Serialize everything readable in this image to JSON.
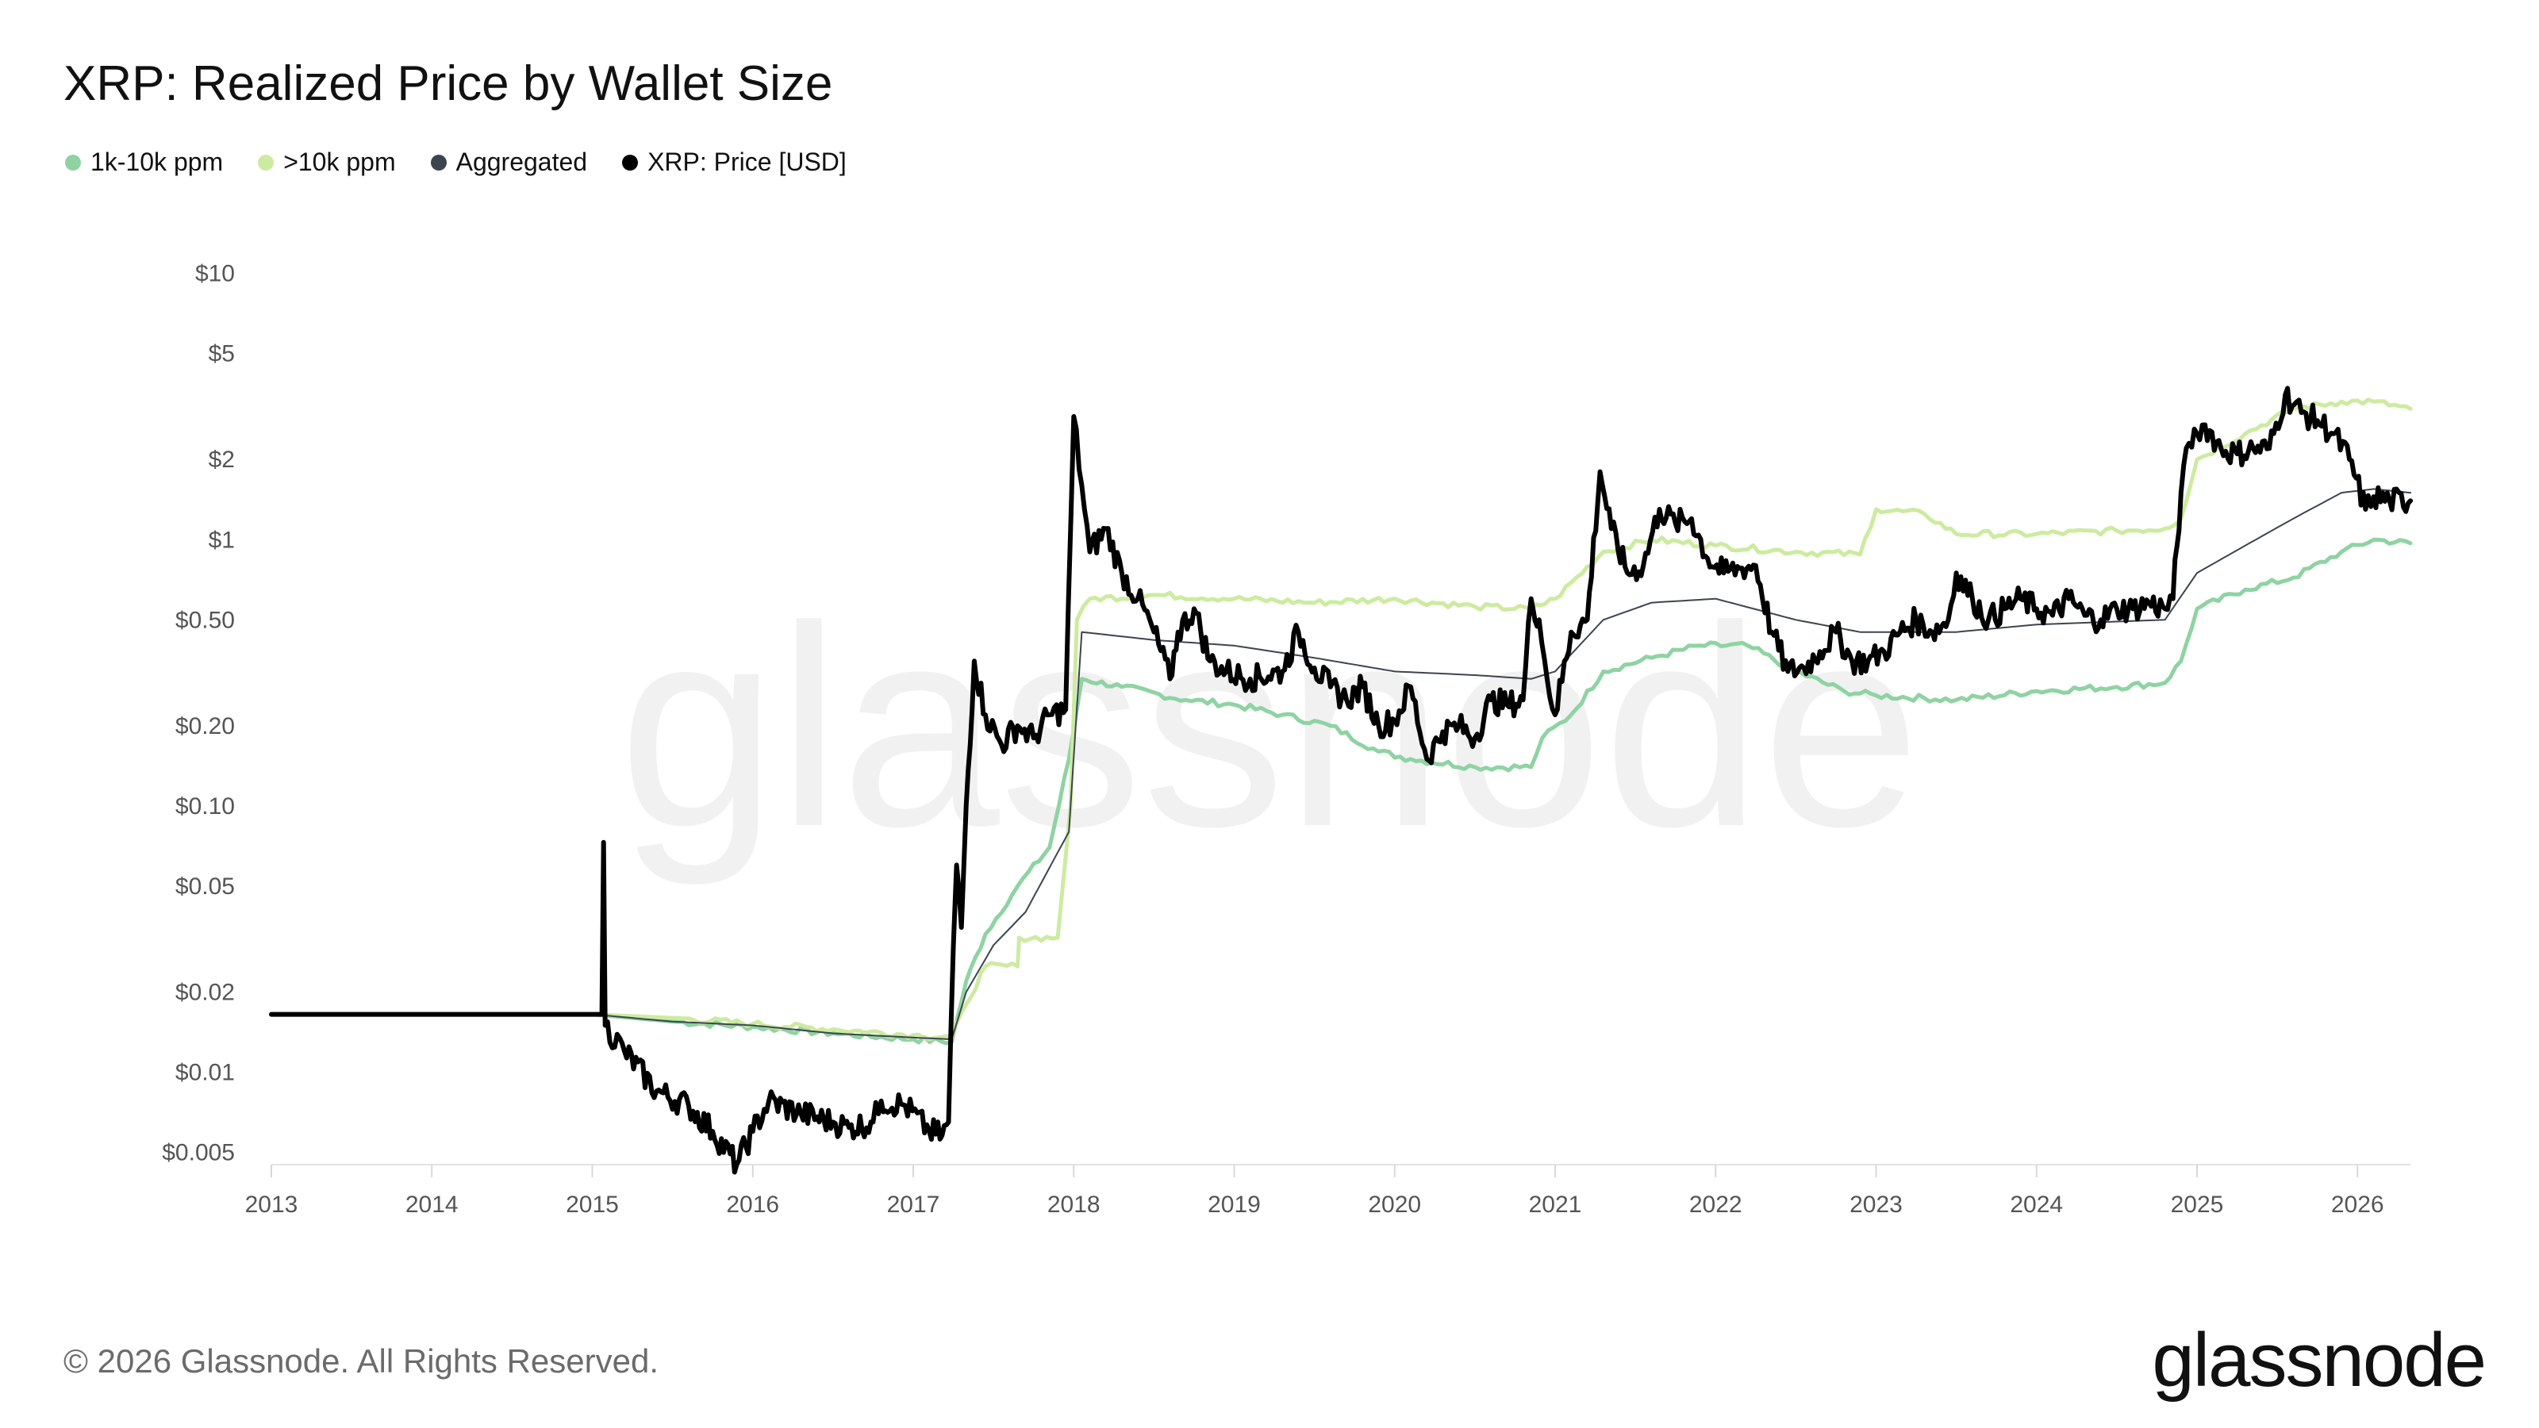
{
  "title": "XRP: Realized Price by Wallet Size",
  "legend": [
    {
      "label": "1k-10k ppm",
      "color": "#8fd3a3"
    },
    {
      "label": ">10k ppm",
      "color": "#cdeba0"
    },
    {
      "label": "Aggregated",
      "color": "#3d4450"
    },
    {
      "label": "XRP: Price [USD]",
      "color": "#000000"
    }
  ],
  "footer": "© 2026 Glassnode. All Rights Reserved.",
  "brand": "glassnode",
  "watermark": "glassnode",
  "chart_data": {
    "type": "line",
    "title": "XRP: Realized Price by Wallet Size",
    "y_scale": "log",
    "ylim": [
      0.0045,
      12
    ],
    "xlim": [
      2013.0,
      2026.33
    ],
    "x_ticks": [
      2013,
      2014,
      2015,
      2016,
      2017,
      2018,
      2019,
      2020,
      2021,
      2022,
      2023,
      2024,
      2025,
      2026
    ],
    "x_tick_labels": [
      "2013",
      "2014",
      "2015",
      "2016",
      "2017",
      "2018",
      "2019",
      "2020",
      "2021",
      "2022",
      "2023",
      "2024",
      "2025",
      "2026"
    ],
    "y_ticks": [
      0.005,
      0.01,
      0.02,
      0.05,
      0.1,
      0.2,
      0.5,
      1,
      2,
      5,
      10
    ],
    "y_tick_labels": [
      "$0.005",
      "$0.01",
      "$0.02",
      "$0.05",
      "$0.10",
      "$0.20",
      "$0.50",
      "$1",
      "$2",
      "$5",
      "$10"
    ],
    "grid": false,
    "legend_position": "top-left",
    "series": [
      {
        "name": "1k-10k ppm",
        "color": "#8fd3a3",
        "width": 5,
        "points": [
          [
            2013.0,
            0.0165
          ],
          [
            2015.0,
            0.0165
          ],
          [
            2015.5,
            0.0155
          ],
          [
            2016.0,
            0.0148
          ],
          [
            2016.5,
            0.014
          ],
          [
            2017.0,
            0.0133
          ],
          [
            2017.24,
            0.013
          ],
          [
            2017.33,
            0.022
          ],
          [
            2017.45,
            0.033
          ],
          [
            2017.65,
            0.05
          ],
          [
            2017.85,
            0.07
          ],
          [
            2017.97,
            0.15
          ],
          [
            2018.05,
            0.3
          ],
          [
            2018.3,
            0.28
          ],
          [
            2018.7,
            0.25
          ],
          [
            2019.0,
            0.24
          ],
          [
            2019.3,
            0.22
          ],
          [
            2019.6,
            0.2
          ],
          [
            2019.9,
            0.16
          ],
          [
            2020.1,
            0.15
          ],
          [
            2020.5,
            0.14
          ],
          [
            2020.85,
            0.14
          ],
          [
            2020.92,
            0.18
          ],
          [
            2021.1,
            0.22
          ],
          [
            2021.3,
            0.32
          ],
          [
            2021.6,
            0.36
          ],
          [
            2021.9,
            0.4
          ],
          [
            2022.2,
            0.4
          ],
          [
            2022.5,
            0.32
          ],
          [
            2022.8,
            0.27
          ],
          [
            2023.0,
            0.26
          ],
          [
            2023.5,
            0.25
          ],
          [
            2024.0,
            0.27
          ],
          [
            2024.5,
            0.28
          ],
          [
            2024.8,
            0.29
          ],
          [
            2024.9,
            0.35
          ],
          [
            2025.0,
            0.55
          ],
          [
            2025.3,
            0.65
          ],
          [
            2025.6,
            0.72
          ],
          [
            2025.9,
            0.9
          ],
          [
            2026.1,
            1.0
          ],
          [
            2026.33,
            0.97
          ]
        ]
      },
      {
        "name": ">10k ppm",
        "color": "#cdeba0",
        "width": 5,
        "points": [
          [
            2013.0,
            0.0165
          ],
          [
            2015.0,
            0.0165
          ],
          [
            2015.5,
            0.016
          ],
          [
            2016.0,
            0.0152
          ],
          [
            2016.5,
            0.0145
          ],
          [
            2017.0,
            0.0138
          ],
          [
            2017.24,
            0.0135
          ],
          [
            2017.33,
            0.018
          ],
          [
            2017.45,
            0.025
          ],
          [
            2017.65,
            0.025
          ],
          [
            2017.66,
            0.032
          ],
          [
            2017.9,
            0.032
          ],
          [
            2017.98,
            0.1
          ],
          [
            2018.02,
            0.5
          ],
          [
            2018.1,
            0.6
          ],
          [
            2018.5,
            0.62
          ],
          [
            2019.0,
            0.6
          ],
          [
            2019.5,
            0.58
          ],
          [
            2020.0,
            0.6
          ],
          [
            2020.5,
            0.56
          ],
          [
            2020.85,
            0.55
          ],
          [
            2021.0,
            0.6
          ],
          [
            2021.3,
            0.9
          ],
          [
            2021.6,
            1.0
          ],
          [
            2022.0,
            0.95
          ],
          [
            2022.5,
            0.9
          ],
          [
            2022.9,
            0.88
          ],
          [
            2023.0,
            1.3
          ],
          [
            2023.3,
            1.25
          ],
          [
            2023.5,
            1.05
          ],
          [
            2024.0,
            1.05
          ],
          [
            2024.5,
            1.08
          ],
          [
            2024.8,
            1.1
          ],
          [
            2024.9,
            1.2
          ],
          [
            2025.0,
            2.0
          ],
          [
            2025.3,
            2.5
          ],
          [
            2025.6,
            3.1
          ],
          [
            2025.9,
            3.3
          ],
          [
            2026.1,
            3.3
          ],
          [
            2026.33,
            3.1
          ]
        ]
      },
      {
        "name": "Aggregated",
        "color": "#3d4450",
        "width": 2,
        "points": [
          [
            2013.0,
            0.0165
          ],
          [
            2015.0,
            0.0165
          ],
          [
            2015.5,
            0.0155
          ],
          [
            2016.0,
            0.015
          ],
          [
            2016.5,
            0.014
          ],
          [
            2017.0,
            0.0135
          ],
          [
            2017.24,
            0.0133
          ],
          [
            2017.33,
            0.02
          ],
          [
            2017.5,
            0.03
          ],
          [
            2017.7,
            0.04
          ],
          [
            2017.97,
            0.08
          ],
          [
            2018.05,
            0.45
          ],
          [
            2018.5,
            0.42
          ],
          [
            2019.0,
            0.4
          ],
          [
            2019.5,
            0.36
          ],
          [
            2020.0,
            0.32
          ],
          [
            2020.5,
            0.31
          ],
          [
            2020.85,
            0.3
          ],
          [
            2021.0,
            0.32
          ],
          [
            2021.3,
            0.5
          ],
          [
            2021.6,
            0.58
          ],
          [
            2022.0,
            0.6
          ],
          [
            2022.5,
            0.5
          ],
          [
            2022.9,
            0.45
          ],
          [
            2023.5,
            0.45
          ],
          [
            2024.0,
            0.48
          ],
          [
            2024.8,
            0.5
          ],
          [
            2025.0,
            0.75
          ],
          [
            2025.3,
            0.95
          ],
          [
            2025.6,
            1.2
          ],
          [
            2025.9,
            1.5
          ],
          [
            2026.1,
            1.55
          ],
          [
            2026.33,
            1.5
          ]
        ]
      },
      {
        "name": "XRP: Price [USD]",
        "color": "#000000",
        "width": 6,
        "points": [
          [
            2013.0,
            0.0165
          ],
          [
            2015.06,
            0.0165
          ],
          [
            2015.07,
            0.073
          ],
          [
            2015.08,
            0.015
          ],
          [
            2015.2,
            0.012
          ],
          [
            2015.4,
            0.0085
          ],
          [
            2015.6,
            0.0075
          ],
          [
            2015.75,
            0.006
          ],
          [
            2015.9,
            0.0045
          ],
          [
            2016.0,
            0.006
          ],
          [
            2016.1,
            0.0078
          ],
          [
            2016.3,
            0.007
          ],
          [
            2016.5,
            0.0065
          ],
          [
            2016.6,
            0.0062
          ],
          [
            2016.75,
            0.0065
          ],
          [
            2016.8,
            0.0078
          ],
          [
            2016.95,
            0.0075
          ],
          [
            2017.1,
            0.006
          ],
          [
            2017.18,
            0.0058
          ],
          [
            2017.22,
            0.0065
          ],
          [
            2017.25,
            0.03
          ],
          [
            2017.27,
            0.06
          ],
          [
            2017.3,
            0.035
          ],
          [
            2017.33,
            0.1
          ],
          [
            2017.38,
            0.35
          ],
          [
            2017.45,
            0.22
          ],
          [
            2017.55,
            0.17
          ],
          [
            2017.65,
            0.2
          ],
          [
            2017.75,
            0.18
          ],
          [
            2017.85,
            0.22
          ],
          [
            2017.95,
            0.23
          ],
          [
            2018.0,
            2.9
          ],
          [
            2018.05,
            1.6
          ],
          [
            2018.1,
            0.9
          ],
          [
            2018.2,
            1.1
          ],
          [
            2018.3,
            0.75
          ],
          [
            2018.4,
            0.6
          ],
          [
            2018.5,
            0.45
          ],
          [
            2018.6,
            0.3
          ],
          [
            2018.65,
            0.45
          ],
          [
            2018.75,
            0.55
          ],
          [
            2018.85,
            0.35
          ],
          [
            2018.95,
            0.32
          ],
          [
            2019.1,
            0.3
          ],
          [
            2019.3,
            0.32
          ],
          [
            2019.4,
            0.45
          ],
          [
            2019.5,
            0.33
          ],
          [
            2019.6,
            0.28
          ],
          [
            2019.7,
            0.25
          ],
          [
            2019.8,
            0.28
          ],
          [
            2019.9,
            0.2
          ],
          [
            2020.0,
            0.21
          ],
          [
            2020.1,
            0.28
          ],
          [
            2020.2,
            0.15
          ],
          [
            2020.3,
            0.19
          ],
          [
            2020.4,
            0.2
          ],
          [
            2020.5,
            0.18
          ],
          [
            2020.6,
            0.25
          ],
          [
            2020.7,
            0.24
          ],
          [
            2020.8,
            0.25
          ],
          [
            2020.85,
            0.6
          ],
          [
            2020.9,
            0.5
          ],
          [
            2020.95,
            0.3
          ],
          [
            2021.0,
            0.22
          ],
          [
            2021.1,
            0.45
          ],
          [
            2021.2,
            0.5
          ],
          [
            2021.28,
            1.8
          ],
          [
            2021.35,
            1.1
          ],
          [
            2021.45,
            0.75
          ],
          [
            2021.55,
            0.8
          ],
          [
            2021.65,
            1.3
          ],
          [
            2021.75,
            1.15
          ],
          [
            2021.85,
            1.2
          ],
          [
            2021.95,
            0.85
          ],
          [
            2022.05,
            0.75
          ],
          [
            2022.15,
            0.78
          ],
          [
            2022.25,
            0.8
          ],
          [
            2022.35,
            0.45
          ],
          [
            2022.45,
            0.32
          ],
          [
            2022.55,
            0.33
          ],
          [
            2022.65,
            0.38
          ],
          [
            2022.75,
            0.45
          ],
          [
            2022.85,
            0.35
          ],
          [
            2022.95,
            0.35
          ],
          [
            2023.05,
            0.38
          ],
          [
            2023.15,
            0.45
          ],
          [
            2023.25,
            0.5
          ],
          [
            2023.35,
            0.45
          ],
          [
            2023.45,
            0.5
          ],
          [
            2023.5,
            0.75
          ],
          [
            2023.6,
            0.6
          ],
          [
            2023.7,
            0.5
          ],
          [
            2023.8,
            0.55
          ],
          [
            2023.9,
            0.6
          ],
          [
            2024.0,
            0.55
          ],
          [
            2024.1,
            0.52
          ],
          [
            2024.2,
            0.6
          ],
          [
            2024.3,
            0.52
          ],
          [
            2024.4,
            0.5
          ],
          [
            2024.5,
            0.55
          ],
          [
            2024.6,
            0.55
          ],
          [
            2024.7,
            0.58
          ],
          [
            2024.8,
            0.55
          ],
          [
            2024.85,
            0.6
          ],
          [
            2024.9,
            1.5
          ],
          [
            2024.95,
            2.3
          ],
          [
            2025.0,
            2.5
          ],
          [
            2025.05,
            2.7
          ],
          [
            2025.15,
            2.2
          ],
          [
            2025.25,
            2.1
          ],
          [
            2025.35,
            2.2
          ],
          [
            2025.45,
            2.2
          ],
          [
            2025.55,
            3.5
          ],
          [
            2025.65,
            3.0
          ],
          [
            2025.75,
            2.8
          ],
          [
            2025.85,
            2.5
          ],
          [
            2025.95,
            2.0
          ],
          [
            2026.05,
            1.3
          ],
          [
            2026.1,
            1.45
          ],
          [
            2026.2,
            1.4
          ],
          [
            2026.33,
            1.4
          ]
        ]
      }
    ]
  }
}
